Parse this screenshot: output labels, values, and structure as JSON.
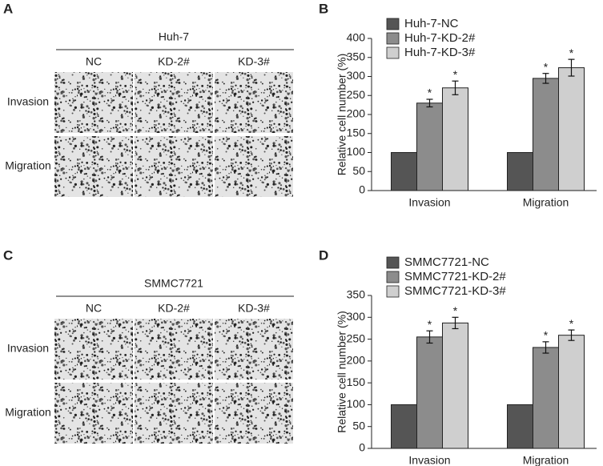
{
  "panels": [
    {
      "label": "A",
      "title": "Huh-7",
      "columns": [
        "NC",
        "KD-2#",
        "KD-3#"
      ],
      "rows": [
        "Invasion",
        "Migration"
      ]
    },
    {
      "label": "C",
      "title": "SMMC7721",
      "columns": [
        "NC",
        "KD-2#",
        "KD-3#"
      ],
      "rows": [
        "Invasion",
        "Migration"
      ]
    }
  ],
  "chart_data": [
    {
      "type": "bar",
      "panel_label": "B",
      "y_label": "Relative cell number (%)",
      "categories": [
        "Invasion",
        "Migration"
      ],
      "series": [
        {
          "name": "Huh-7-NC",
          "color": "#555555",
          "values": [
            100,
            100
          ]
        },
        {
          "name": "Huh-7-KD-2#",
          "color": "#8c8c8c",
          "values": [
            230,
            295
          ],
          "errors": [
            10,
            13
          ],
          "significance": [
            "*",
            "*"
          ]
        },
        {
          "name": "Huh-7-KD-3#",
          "color": "#cfcfcf",
          "values": [
            270,
            323
          ],
          "errors": [
            18,
            22
          ],
          "significance": [
            "*",
            "*"
          ]
        }
      ],
      "ylim": [
        0,
        400
      ],
      "yticks": [
        0,
        50,
        100,
        150,
        200,
        250,
        300,
        350,
        400
      ]
    },
    {
      "type": "bar",
      "panel_label": "D",
      "y_label": "Relative cell number (%)",
      "categories": [
        "Invasion",
        "Migration"
      ],
      "series": [
        {
          "name": "SMMC7721-NC",
          "color": "#555555",
          "values": [
            100,
            100
          ]
        },
        {
          "name": "SMMC7721-KD-2#",
          "color": "#8c8c8c",
          "values": [
            255,
            231
          ],
          "errors": [
            14,
            13
          ],
          "significance": [
            "*",
            "*"
          ]
        },
        {
          "name": "SMMC7721-KD-3#",
          "color": "#cfcfcf",
          "values": [
            287,
            259
          ],
          "errors": [
            13,
            12
          ],
          "significance": [
            "*",
            "*"
          ]
        }
      ],
      "ylim": [
        0,
        350
      ],
      "yticks": [
        0,
        50,
        100,
        150,
        200,
        250,
        300,
        350
      ]
    }
  ]
}
